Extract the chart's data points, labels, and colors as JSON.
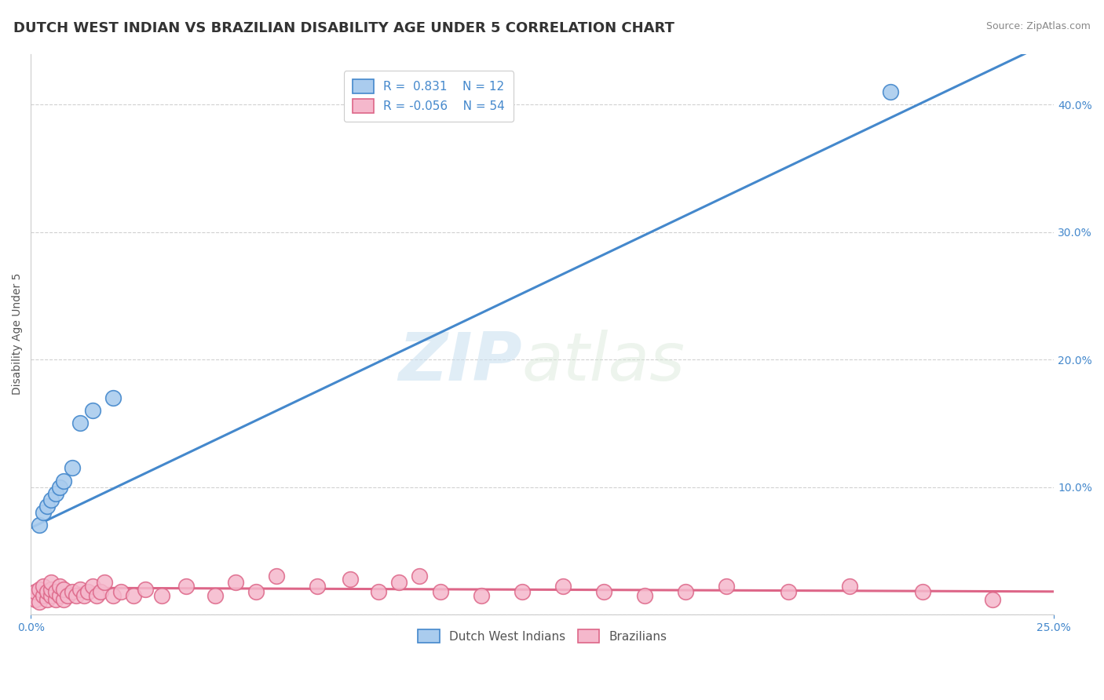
{
  "title": "DUTCH WEST INDIAN VS BRAZILIAN DISABILITY AGE UNDER 5 CORRELATION CHART",
  "source": "Source: ZipAtlas.com",
  "ylabel": "Disability Age Under 5",
  "xlim": [
    0.0,
    0.25
  ],
  "ylim": [
    0.0,
    0.44
  ],
  "blue_color": "#aaccee",
  "pink_color": "#f5b8cc",
  "blue_line_color": "#4488cc",
  "pink_line_color": "#dd6688",
  "watermark_zip": "ZIP",
  "watermark_atlas": "atlas",
  "background_color": "#ffffff",
  "dutch_x": [
    0.002,
    0.003,
    0.004,
    0.005,
    0.006,
    0.007,
    0.008,
    0.01,
    0.012,
    0.015,
    0.02,
    0.21
  ],
  "dutch_y": [
    0.07,
    0.08,
    0.085,
    0.09,
    0.095,
    0.1,
    0.105,
    0.115,
    0.15,
    0.16,
    0.17,
    0.41
  ],
  "blue_line_x0": 0.0,
  "blue_line_y0": 0.068,
  "blue_line_x1": 0.22,
  "blue_line_y1": 0.405,
  "pink_line_x0": 0.0,
  "pink_line_y0": 0.021,
  "pink_line_x1": 0.25,
  "pink_line_y1": 0.018,
  "brazilian_x": [
    0.001,
    0.001,
    0.002,
    0.002,
    0.003,
    0.003,
    0.004,
    0.004,
    0.005,
    0.005,
    0.005,
    0.006,
    0.006,
    0.007,
    0.007,
    0.008,
    0.008,
    0.009,
    0.01,
    0.011,
    0.012,
    0.013,
    0.014,
    0.015,
    0.016,
    0.017,
    0.018,
    0.02,
    0.022,
    0.025,
    0.028,
    0.032,
    0.038,
    0.045,
    0.05,
    0.055,
    0.06,
    0.07,
    0.078,
    0.085,
    0.09,
    0.095,
    0.1,
    0.11,
    0.12,
    0.13,
    0.14,
    0.15,
    0.16,
    0.17,
    0.185,
    0.2,
    0.218,
    0.235
  ],
  "brazilian_y": [
    0.012,
    0.018,
    0.01,
    0.02,
    0.015,
    0.022,
    0.012,
    0.018,
    0.015,
    0.02,
    0.025,
    0.012,
    0.018,
    0.015,
    0.022,
    0.012,
    0.02,
    0.015,
    0.018,
    0.015,
    0.02,
    0.015,
    0.018,
    0.022,
    0.015,
    0.018,
    0.025,
    0.015,
    0.018,
    0.015,
    0.02,
    0.015,
    0.022,
    0.015,
    0.025,
    0.018,
    0.03,
    0.022,
    0.028,
    0.018,
    0.025,
    0.03,
    0.018,
    0.015,
    0.018,
    0.022,
    0.018,
    0.015,
    0.018,
    0.022,
    0.018,
    0.022,
    0.018,
    0.012
  ],
  "title_fontsize": 13,
  "axis_fontsize": 10,
  "tick_fontsize": 10,
  "legend_fontsize": 11,
  "legend_label_blue": "R =  0.831    N = 12",
  "legend_label_pink": "R = -0.056    N = 54",
  "bottom_legend_labels": [
    "Dutch West Indians",
    "Brazilians"
  ]
}
